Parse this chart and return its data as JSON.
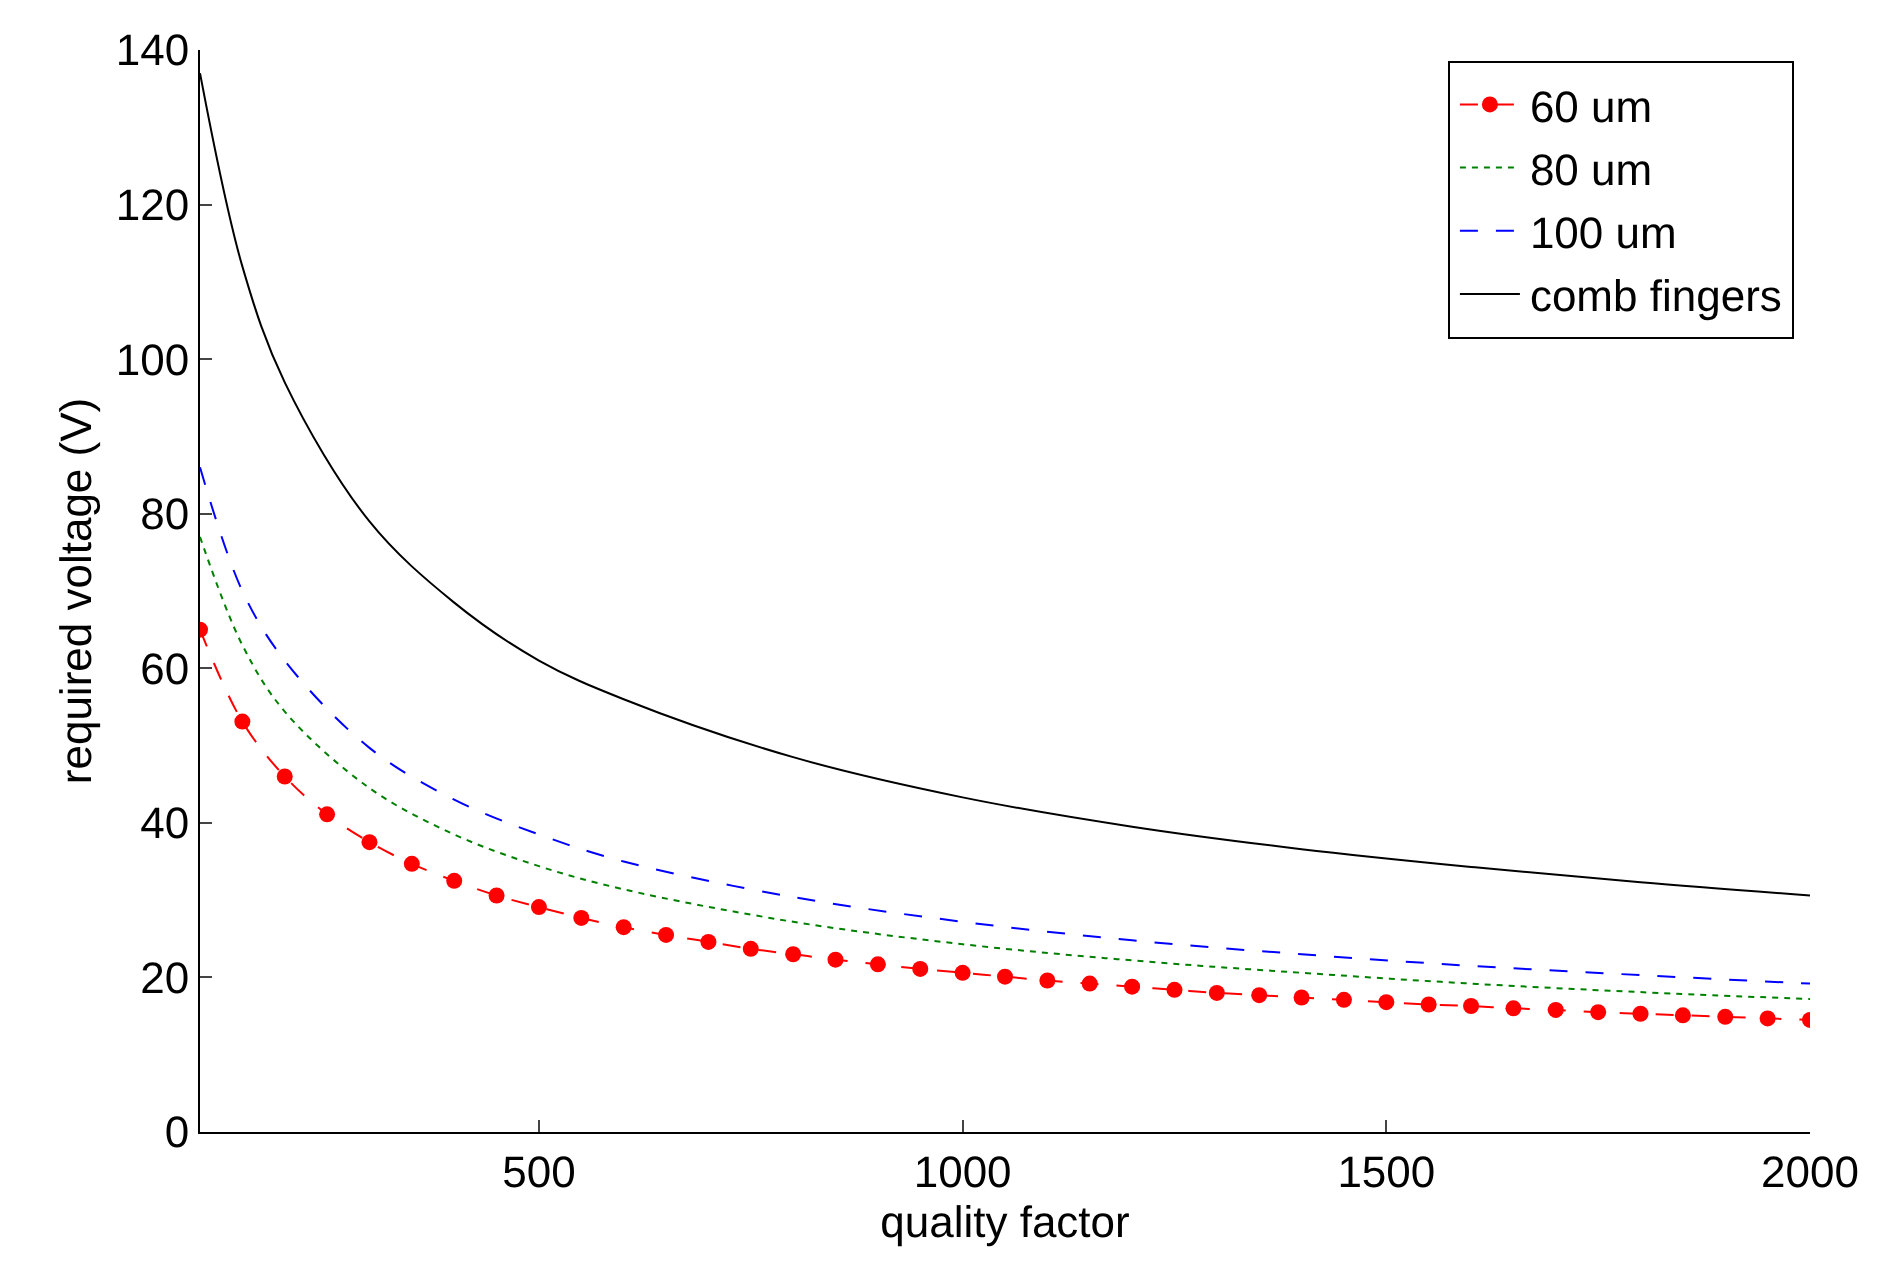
{
  "chart_data": {
    "type": "line",
    "xlabel": "quality factor",
    "ylabel": "required voltage (V)",
    "xlim": [
      100,
      2000
    ],
    "xticks": [
      500,
      1000,
      1500,
      2000
    ],
    "ylim": [
      0,
      140
    ],
    "yticks": [
      0,
      20,
      40,
      60,
      80,
      100,
      120,
      140
    ],
    "legend": "top right",
    "series": [
      {
        "name": "60 um",
        "color": "#ff0000",
        "marker": "circle",
        "line_style": "dashed",
        "x": [
          100,
          150,
          200,
          250,
          300,
          350,
          400,
          450,
          500,
          550,
          600,
          650,
          700,
          750,
          800,
          850,
          900,
          950,
          1000,
          1050,
          1100,
          1150,
          1200,
          1250,
          1300,
          1350,
          1400,
          1450,
          1500,
          1550,
          1600,
          1650,
          1700,
          1750,
          1800,
          1850,
          1900,
          1950,
          2000
        ],
        "values": [
          65,
          53.1,
          46.0,
          41.1,
          37.5,
          34.7,
          32.5,
          30.6,
          29.1,
          27.7,
          26.5,
          25.5,
          24.6,
          23.7,
          23.0,
          22.3,
          21.7,
          21.1,
          20.6,
          20.1,
          19.6,
          19.2,
          18.8,
          18.4,
          18.0,
          17.7,
          17.4,
          17.1,
          16.8,
          16.5,
          16.3,
          16.0,
          15.8,
          15.5,
          15.3,
          15.1,
          14.9,
          14.7,
          14.5
        ]
      },
      {
        "name": "80 um",
        "color": "#008000",
        "marker": "none",
        "line_style": "dotted",
        "x": [
          100,
          150,
          200,
          300,
          400,
          500,
          600,
          800,
          1000,
          1200,
          1400,
          1600,
          1800,
          2000
        ],
        "values": [
          77,
          63,
          54.4,
          44.5,
          38.5,
          34.4,
          31.4,
          27.2,
          24.3,
          22.2,
          20.6,
          19.2,
          18.1,
          17.2
        ]
      },
      {
        "name": "100 um",
        "color": "#0000ff",
        "marker": "none",
        "line_style": "dashed",
        "x": [
          100,
          150,
          200,
          300,
          400,
          500,
          600,
          800,
          1000,
          1200,
          1400,
          1600,
          1800,
          2000
        ],
        "values": [
          86,
          70,
          61,
          49.7,
          43,
          38.5,
          35,
          30.4,
          27.2,
          24.8,
          23,
          21.5,
          20.3,
          19.2
        ]
      },
      {
        "name": "comb fingers",
        "color": "#000000",
        "marker": "none",
        "line_style": "solid",
        "x": [
          100,
          150,
          200,
          300,
          400,
          500,
          600,
          800,
          1000,
          1200,
          1400,
          1600,
          1800,
          2000
        ],
        "values": [
          137,
          112,
          97,
          79,
          68.5,
          61,
          56,
          48.5,
          43.3,
          39.5,
          36.6,
          34.3,
          32.3,
          30.6
        ]
      }
    ]
  }
}
